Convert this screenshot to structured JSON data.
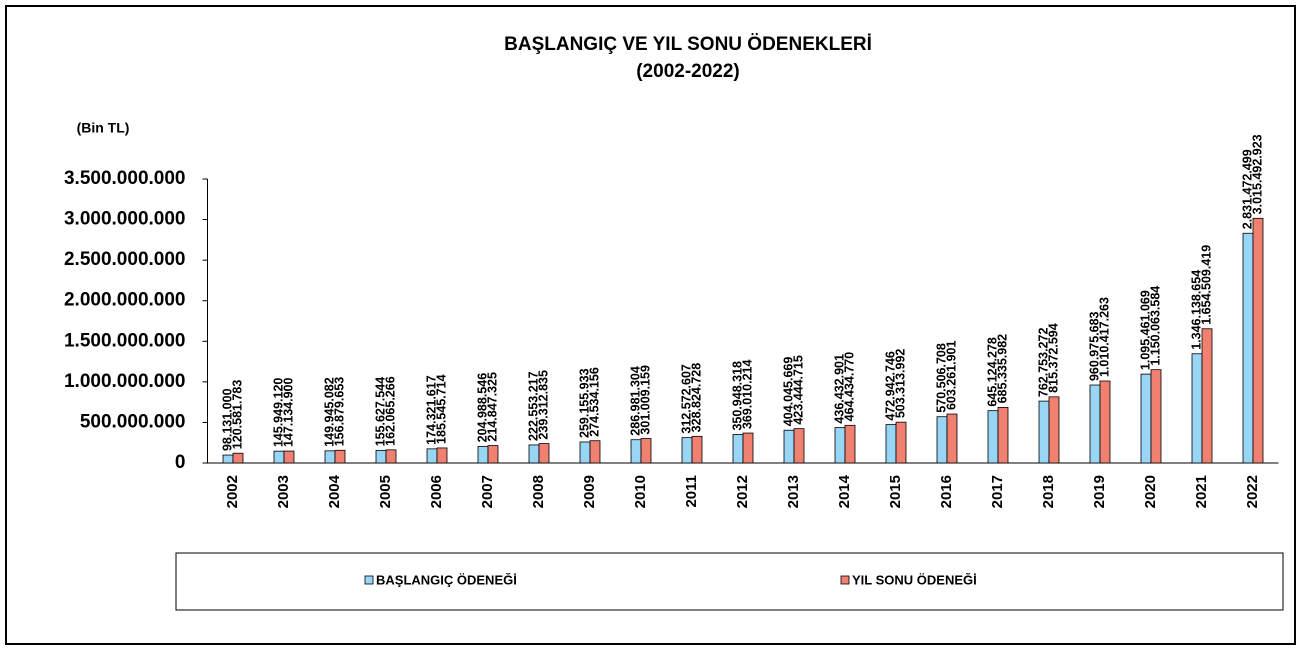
{
  "chart_data": {
    "type": "bar",
    "title": "BAŞLANGIÇ  VE YIL SONU ÖDENEKLERİ",
    "subtitle": "(2002-2022)",
    "y_label": "(Bin TL)",
    "categories": [
      "2002",
      "2003",
      "2004",
      "2005",
      "2006",
      "2007",
      "2008",
      "2009",
      "2010",
      "2011",
      "2012",
      "2013",
      "2014",
      "2015",
      "2016",
      "2017",
      "2018",
      "2019",
      "2020",
      "2021",
      "2022"
    ],
    "series": [
      {
        "name": "BAŞLANGIÇ ÖDENEĞİ",
        "color": "#99d6f5",
        "values": [
          98131000,
          145949120,
          149945082,
          155627544,
          174321617,
          204988546,
          222553217,
          259155933,
          286981304,
          312572607,
          350948318,
          404045669,
          436432901,
          472942746,
          570506708,
          645124278,
          762753272,
          960975683,
          1095461069,
          1346138654,
          2831472499
        ],
        "value_labels": [
          "98.131.000",
          "145.949.120",
          "149.945.082",
          "155.627.544",
          "174.321.617",
          "204.988.546",
          "222.553.217",
          "259.155.933",
          "286.981.304",
          "312.572.607",
          "350.948.318",
          "404.045.669",
          "436.432.901",
          "472.942.746",
          "570.506.708",
          "645.124.278",
          "762.753.272",
          "960.975.683",
          "1.095.461.069",
          "1.346.138.654",
          "2.831.472.499"
        ]
      },
      {
        "name": "YIL SONU ÖDENEĞİ",
        "color": "#f08070",
        "values": [
          120581783,
          147134900,
          156879653,
          162065266,
          185545714,
          214847325,
          239312835,
          274534156,
          301009159,
          328824728,
          369010214,
          423444715,
          464434770,
          503313992,
          603261901,
          685335982,
          815372594,
          1010417263,
          1150063584,
          1654509419,
          3015492923
        ],
        "value_labels": [
          "120.581.783",
          "147.134.900",
          "156.879.653",
          "162.065.266",
          "185.545.714",
          "214.847.325",
          "239.312.835",
          "274.534.156",
          "301.009.159",
          "328.824.728",
          "369.010.214",
          "423.444.715",
          "464.434.770",
          "503.313.992",
          "603.261.901",
          "685.335.982",
          "815.372.594",
          "1.010.417.263",
          "1.150.063.584",
          "1.654.509.419",
          "3.015.492.923"
        ]
      }
    ],
    "ylim": [
      0,
      3500000000
    ],
    "yticks": [
      0,
      {
        "value": 500000000,
        "label": "500.000.000"
      },
      {
        "value": 1000000000,
        "label": "1.000.000.000"
      },
      {
        "value": 1500000000,
        "label": "1.500.000.000"
      },
      {
        "value": 2000000000,
        "label": "2.000.000.000"
      },
      {
        "value": 2500000000,
        "label": "2.500.000.000"
      },
      {
        "value": 3000000000,
        "label": "3.000.000.000"
      },
      {
        "value": 3500000000,
        "label": "3.500.000.000"
      }
    ]
  }
}
